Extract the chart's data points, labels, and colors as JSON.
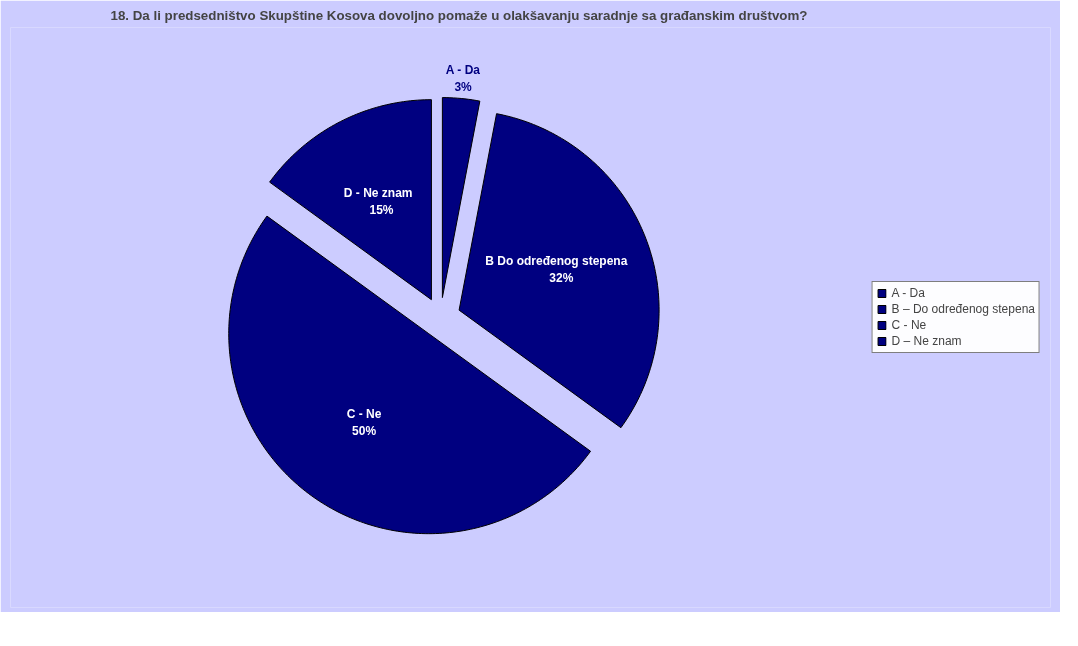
{
  "chart_data": {
    "type": "pie",
    "title": "18. Da li predsedništvo Skupštine Kosova dovoljno pomaže u olakšavanju saradnje sa građanskim društvom?",
    "categories": [
      "A - Da",
      "B – Do određenog stepena",
      "C - Ne",
      "D – Ne znam"
    ],
    "values": [
      3,
      32,
      50,
      15
    ],
    "colors": [
      "#000080",
      "#000080",
      "#000080",
      "#000080"
    ],
    "value_labels": [
      "A - Da\n3%",
      "B    Do određenog stepena\n32%",
      "C - Ne\n50%",
      "D -   Ne znam\n15%"
    ],
    "legend": "right"
  }
}
